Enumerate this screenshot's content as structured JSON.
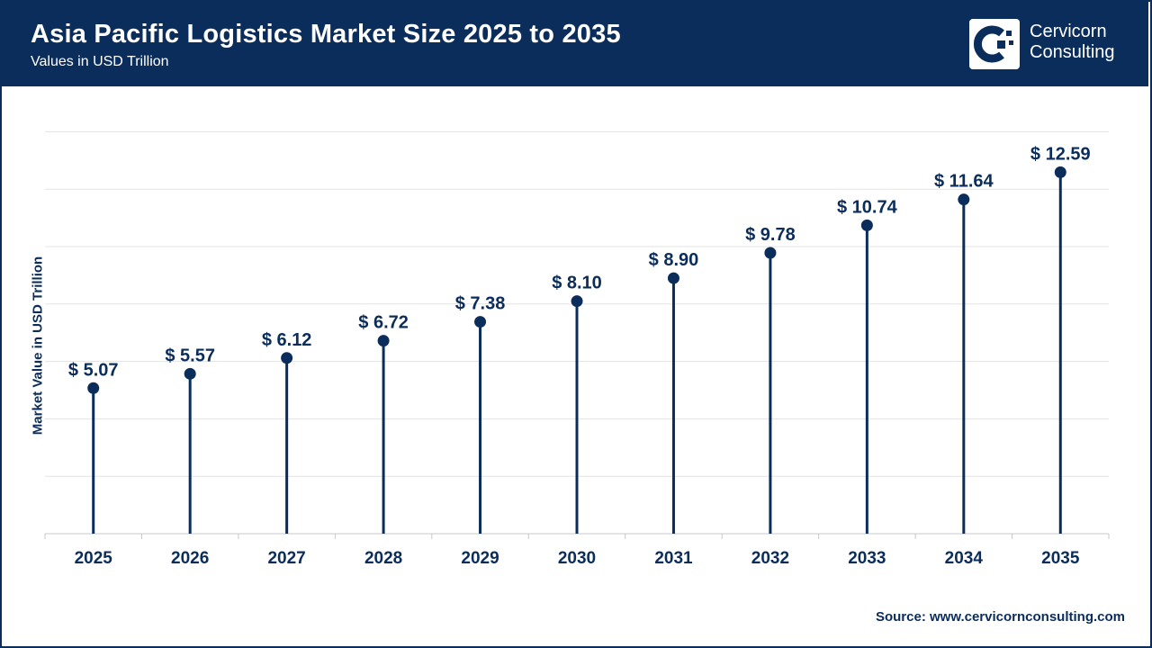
{
  "header": {
    "title": "Asia Pacific Logistics Market Size 2025 to 2035",
    "subtitle": "Values in USD Trillion"
  },
  "brand": {
    "logo_icon": "cervicorn-logo-icon",
    "name_line1": "Cervicorn",
    "name_line2": "Consulting"
  },
  "colors": {
    "primary": "#0b2d5b",
    "gridline": "#e3e3e3",
    "background": "#ffffff"
  },
  "source": {
    "label": "Source:",
    "url": "www.cervicornconsulting.com"
  },
  "chart_data": {
    "type": "lollipop",
    "title": "Asia Pacific Logistics Market Size 2025 to 2035",
    "subtitle": "Values in USD Trillion",
    "ylabel": "Market Value in USD Trillion",
    "xlabel": "",
    "categories": [
      "2025",
      "2026",
      "2027",
      "2028",
      "2029",
      "2030",
      "2031",
      "2032",
      "2033",
      "2034",
      "2035"
    ],
    "values": [
      5.07,
      5.57,
      6.12,
      6.72,
      7.38,
      8.1,
      8.9,
      9.78,
      10.74,
      11.64,
      12.59
    ],
    "data_labels": [
      "$ 5.07",
      "$ 5.57",
      "$ 6.12",
      "$ 6.72",
      "$ 7.38",
      "$ 8.10",
      "$ 8.90",
      "$ 9.78",
      "$ 10.74",
      "$ 11.64",
      "$ 12.59"
    ],
    "ylim": [
      0,
      14
    ],
    "grid": true,
    "legend": "none"
  }
}
